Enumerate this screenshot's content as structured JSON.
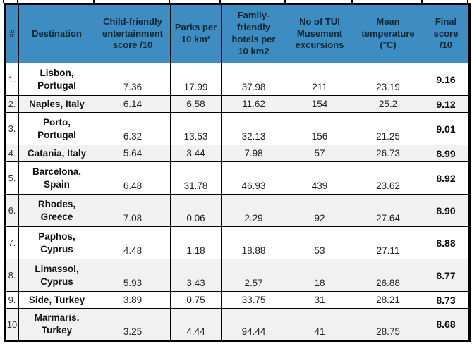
{
  "chart_data": {
    "type": "table",
    "columns": [
      "#",
      "Destination",
      "Child-friendly\nentertainment\nscore /10",
      "Parks per\n10 km²",
      "Family-\nfriendly\nhotels per\n10 km2",
      "No of TUI\nMusement\nexcursions",
      "Mean\ntemperature\n(°C)",
      "Final\nscore\n/10"
    ],
    "rows": [
      {
        "num": "1.",
        "destination": "Lisbon,\nPortugal",
        "entertainment": "7.36",
        "parks": "17.99",
        "hotels": "37.98",
        "excursions": "211",
        "temperature": "23.19",
        "final": "9.16"
      },
      {
        "num": "2.",
        "destination": "Naples, Italy",
        "entertainment": "6.14",
        "parks": "6.58",
        "hotels": "11.62",
        "excursions": "154",
        "temperature": "25.2",
        "final": "9.12"
      },
      {
        "num": "3.",
        "destination": "Porto,\nPortugal",
        "entertainment": "6.32",
        "parks": "13.53",
        "hotels": "32.13",
        "excursions": "156",
        "temperature": "21.25",
        "final": "9.01"
      },
      {
        "num": "4.",
        "destination": "Catania, Italy",
        "entertainment": "5.64",
        "parks": "3.44",
        "hotels": "7.98",
        "excursions": "57",
        "temperature": "26.73",
        "final": "8.99"
      },
      {
        "num": "5.",
        "destination": "Barcelona,\nSpain",
        "entertainment": "6.48",
        "parks": "31.78",
        "hotels": "46.93",
        "excursions": "439",
        "temperature": "23.62",
        "final": "8.92"
      },
      {
        "num": "6.",
        "destination": "Rhodes,\nGreece",
        "entertainment": "7.08",
        "parks": "0.06",
        "hotels": "2.29",
        "excursions": "92",
        "temperature": "27.64",
        "final": "8.90"
      },
      {
        "num": "7.",
        "destination": "Paphos,\nCyprus",
        "entertainment": "4.48",
        "parks": "1.18",
        "hotels": "18.88",
        "excursions": "53",
        "temperature": "27.11",
        "final": "8.88"
      },
      {
        "num": "8.",
        "destination": "Limassol,\nCyprus",
        "entertainment": "5.93",
        "parks": "3.43",
        "hotels": "2.57",
        "excursions": "18",
        "temperature": "26.88",
        "final": "8.77"
      },
      {
        "num": "9.",
        "destination": "Side, Turkey",
        "entertainment": "3.89",
        "parks": "0.75",
        "hotels": "33.75",
        "excursions": "31",
        "temperature": "28.21",
        "final": "8.73"
      },
      {
        "num": "10",
        "destination": "Marmaris,\nTurkey",
        "entertainment": "3.25",
        "parks": "4.44",
        "hotels": "94.44",
        "excursions": "41",
        "temperature": "28.75",
        "final": "8.68"
      }
    ]
  },
  "colors": {
    "header_bg": "#3d8dc3",
    "header_text": "#122734",
    "row_alt_bg": "#f1f1f1",
    "border": "#000000"
  }
}
